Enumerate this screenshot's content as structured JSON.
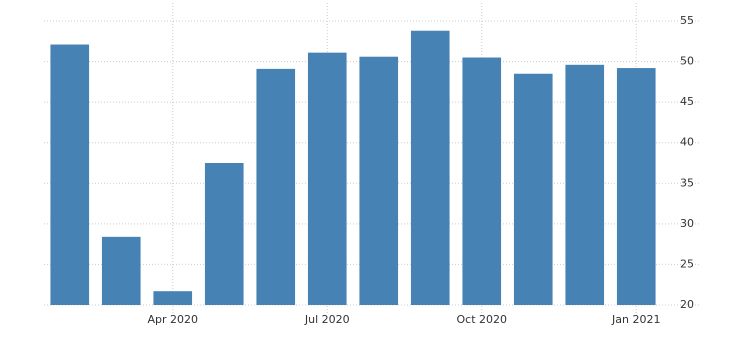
{
  "chart_data": {
    "type": "bar",
    "categories": [
      null,
      null,
      "Apr 2020",
      null,
      null,
      "Jul 2020",
      null,
      null,
      "Oct 2020",
      null,
      null,
      "Jan 2021"
    ],
    "values": [
      52.1,
      28.4,
      21.7,
      37.5,
      49.1,
      51.1,
      50.6,
      53.8,
      50.5,
      48.5,
      49.6,
      49.2
    ],
    "color": "#4682b4",
    "ylim": [
      20,
      55
    ],
    "yticks": [
      20,
      25,
      30,
      35,
      40,
      45,
      50,
      55
    ],
    "grid": true
  }
}
